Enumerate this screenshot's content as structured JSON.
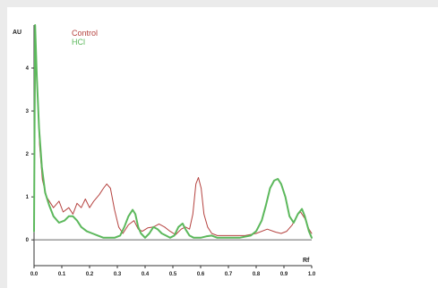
{
  "chart_data": {
    "type": "line",
    "ylabel": "AU",
    "xlabel": "Rf",
    "xlim": [
      0,
      1.0
    ],
    "ylim": [
      -0.6,
      5.0
    ],
    "xticks": [
      "0.0",
      "0.1",
      "0.2",
      "0.3",
      "0.4",
      "0.5",
      "0.6",
      "0.7",
      "0.8",
      "0.9",
      "1.0"
    ],
    "yticks": [
      "0",
      "1",
      "2",
      "3",
      "4"
    ],
    "grid": false,
    "legend_position": "top-left",
    "series": [
      {
        "name": "Control",
        "color": "#b5423f",
        "points": [
          [
            0.0,
            0.3
          ],
          [
            0.005,
            4.6
          ],
          [
            0.012,
            3.6
          ],
          [
            0.02,
            2.2
          ],
          [
            0.03,
            1.4
          ],
          [
            0.045,
            1.0
          ],
          [
            0.07,
            0.75
          ],
          [
            0.09,
            0.9
          ],
          [
            0.105,
            0.65
          ],
          [
            0.125,
            0.75
          ],
          [
            0.14,
            0.6
          ],
          [
            0.155,
            0.85
          ],
          [
            0.17,
            0.75
          ],
          [
            0.185,
            0.95
          ],
          [
            0.2,
            0.75
          ],
          [
            0.215,
            0.9
          ],
          [
            0.235,
            1.05
          ],
          [
            0.25,
            1.2
          ],
          [
            0.262,
            1.3
          ],
          [
            0.275,
            1.2
          ],
          [
            0.29,
            0.7
          ],
          [
            0.305,
            0.3
          ],
          [
            0.32,
            0.15
          ],
          [
            0.34,
            0.35
          ],
          [
            0.36,
            0.45
          ],
          [
            0.375,
            0.25
          ],
          [
            0.39,
            0.2
          ],
          [
            0.41,
            0.28
          ],
          [
            0.43,
            0.3
          ],
          [
            0.45,
            0.37
          ],
          [
            0.47,
            0.3
          ],
          [
            0.49,
            0.2
          ],
          [
            0.51,
            0.12
          ],
          [
            0.53,
            0.25
          ],
          [
            0.545,
            0.3
          ],
          [
            0.56,
            0.25
          ],
          [
            0.572,
            0.6
          ],
          [
            0.583,
            1.3
          ],
          [
            0.592,
            1.45
          ],
          [
            0.602,
            1.2
          ],
          [
            0.612,
            0.6
          ],
          [
            0.625,
            0.3
          ],
          [
            0.64,
            0.15
          ],
          [
            0.66,
            0.1
          ],
          [
            0.68,
            0.1
          ],
          [
            0.72,
            0.1
          ],
          [
            0.76,
            0.1
          ],
          [
            0.8,
            0.15
          ],
          [
            0.84,
            0.25
          ],
          [
            0.87,
            0.18
          ],
          [
            0.89,
            0.15
          ],
          [
            0.91,
            0.2
          ],
          [
            0.93,
            0.35
          ],
          [
            0.95,
            0.6
          ],
          [
            0.96,
            0.65
          ],
          [
            0.975,
            0.5
          ],
          [
            0.99,
            0.25
          ],
          [
            1.0,
            0.15
          ]
        ]
      },
      {
        "name": "HCl",
        "color": "#5cb85c",
        "points": [
          [
            0.0,
            0.2
          ],
          [
            0.004,
            5.0
          ],
          [
            0.01,
            3.8
          ],
          [
            0.018,
            2.6
          ],
          [
            0.028,
            1.7
          ],
          [
            0.04,
            1.1
          ],
          [
            0.055,
            0.8
          ],
          [
            0.07,
            0.55
          ],
          [
            0.09,
            0.4
          ],
          [
            0.11,
            0.45
          ],
          [
            0.125,
            0.55
          ],
          [
            0.14,
            0.55
          ],
          [
            0.155,
            0.45
          ],
          [
            0.17,
            0.3
          ],
          [
            0.19,
            0.2
          ],
          [
            0.21,
            0.15
          ],
          [
            0.23,
            0.1
          ],
          [
            0.25,
            0.05
          ],
          [
            0.27,
            0.05
          ],
          [
            0.29,
            0.05
          ],
          [
            0.31,
            0.1
          ],
          [
            0.325,
            0.3
          ],
          [
            0.34,
            0.55
          ],
          [
            0.355,
            0.7
          ],
          [
            0.365,
            0.6
          ],
          [
            0.375,
            0.3
          ],
          [
            0.385,
            0.15
          ],
          [
            0.4,
            0.05
          ],
          [
            0.415,
            0.15
          ],
          [
            0.43,
            0.3
          ],
          [
            0.445,
            0.25
          ],
          [
            0.46,
            0.15
          ],
          [
            0.475,
            0.1
          ],
          [
            0.49,
            0.05
          ],
          [
            0.505,
            0.1
          ],
          [
            0.52,
            0.3
          ],
          [
            0.535,
            0.38
          ],
          [
            0.545,
            0.25
          ],
          [
            0.56,
            0.1
          ],
          [
            0.575,
            0.05
          ],
          [
            0.6,
            0.05
          ],
          [
            0.62,
            0.08
          ],
          [
            0.64,
            0.1
          ],
          [
            0.66,
            0.05
          ],
          [
            0.7,
            0.05
          ],
          [
            0.74,
            0.05
          ],
          [
            0.78,
            0.1
          ],
          [
            0.8,
            0.2
          ],
          [
            0.82,
            0.45
          ],
          [
            0.835,
            0.8
          ],
          [
            0.85,
            1.2
          ],
          [
            0.865,
            1.38
          ],
          [
            0.878,
            1.42
          ],
          [
            0.89,
            1.3
          ],
          [
            0.905,
            1.0
          ],
          [
            0.92,
            0.55
          ],
          [
            0.935,
            0.4
          ],
          [
            0.95,
            0.6
          ],
          [
            0.965,
            0.72
          ],
          [
            0.975,
            0.55
          ],
          [
            0.99,
            0.2
          ],
          [
            1.0,
            0.05
          ]
        ]
      }
    ]
  }
}
